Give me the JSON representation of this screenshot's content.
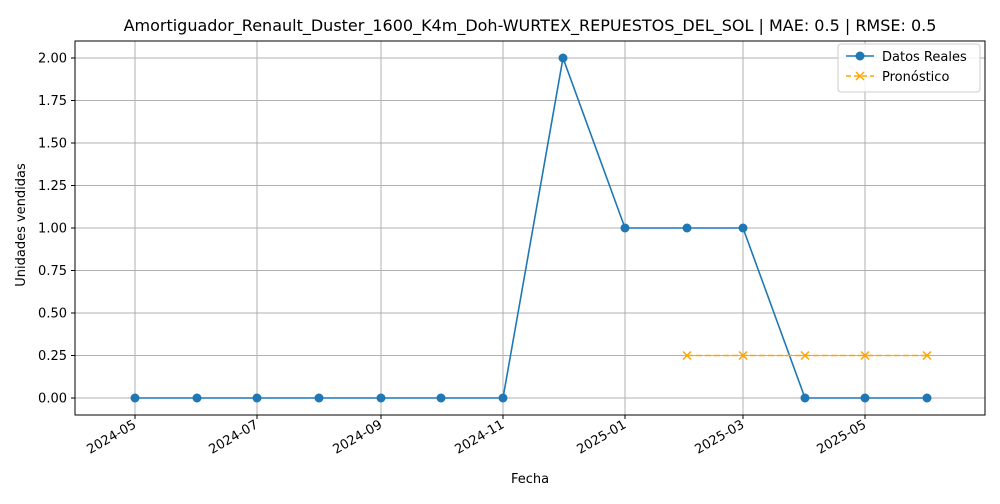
{
  "chart_data": {
    "type": "line",
    "title": "Amortiguador_Renault_Duster_1600_K4m_Doh-WURTEX_REPUESTOS_DEL_SOL | MAE: 0.5 | RMSE: 0.5",
    "xlabel": "Fecha",
    "ylabel": "Unidades vendidas",
    "ylim": [
      -0.1,
      2.1
    ],
    "xlim": [
      "2024-04-01",
      "2025-06-30"
    ],
    "grid": true,
    "legend_position": "top-right",
    "x_ticks": [
      "2024-05",
      "2024-07",
      "2024-09",
      "2024-11",
      "2025-01",
      "2025-03",
      "2025-05"
    ],
    "y_ticks": [
      "0.00",
      "0.25",
      "0.50",
      "0.75",
      "1.00",
      "1.25",
      "1.50",
      "1.75",
      "2.00"
    ],
    "series": [
      {
        "name": "Datos Reales",
        "color": "#1f77b4",
        "style": "solid",
        "marker": "circle",
        "x": [
          "2024-05-01",
          "2024-06-01",
          "2024-07-01",
          "2024-08-01",
          "2024-09-01",
          "2024-10-01",
          "2024-11-01",
          "2024-12-01",
          "2025-01-01",
          "2025-02-01",
          "2025-03-01",
          "2025-04-01",
          "2025-05-01",
          "2025-06-01"
        ],
        "values": [
          0,
          0,
          0,
          0,
          0,
          0,
          0,
          2,
          1,
          1,
          1,
          0,
          0,
          0
        ]
      },
      {
        "name": "Pronóstico",
        "color": "#ffa500",
        "style": "dashed",
        "marker": "x",
        "x": [
          "2025-02-01",
          "2025-03-01",
          "2025-04-01",
          "2025-05-01",
          "2025-06-01"
        ],
        "values": [
          0.25,
          0.25,
          0.25,
          0.25,
          0.25
        ]
      }
    ]
  }
}
